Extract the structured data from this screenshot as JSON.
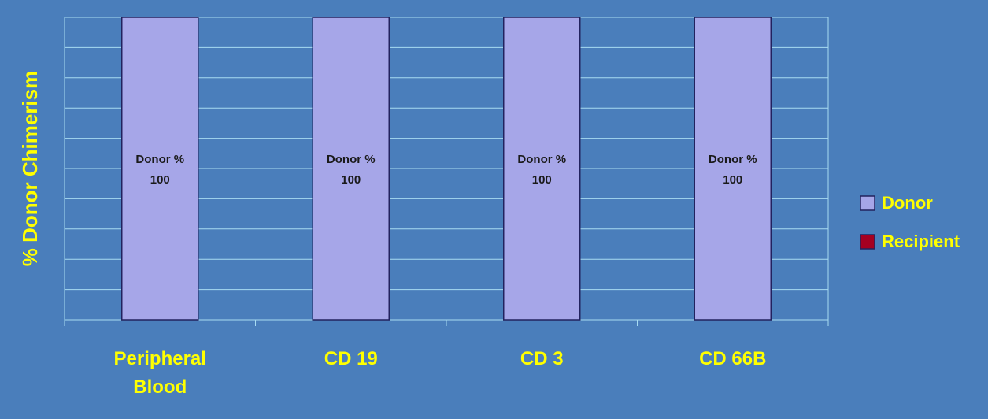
{
  "chart_data": {
    "type": "stacked_bar",
    "ylabel": "% Donor Chimerism",
    "categories": [
      "Peripheral Blood",
      "CD 19",
      "CD 3",
      "CD 66B"
    ],
    "series": [
      {
        "name": "Donor",
        "color": "#a6a6e8",
        "values": [
          100,
          100,
          100,
          100
        ],
        "value_labels": [
          [
            "Donor %",
            "100"
          ],
          [
            "Donor %",
            "100"
          ],
          [
            "Donor %",
            "100"
          ],
          [
            "Donor %",
            "100"
          ]
        ]
      },
      {
        "name": "Recipient",
        "color": "#a50021",
        "values": [
          0,
          0,
          0,
          0
        ]
      }
    ],
    "ylim": [
      0,
      100
    ],
    "yticks": [
      0,
      10,
      20,
      30,
      40,
      50,
      60,
      70,
      80,
      90,
      100
    ],
    "grid": true,
    "legend": "right"
  }
}
